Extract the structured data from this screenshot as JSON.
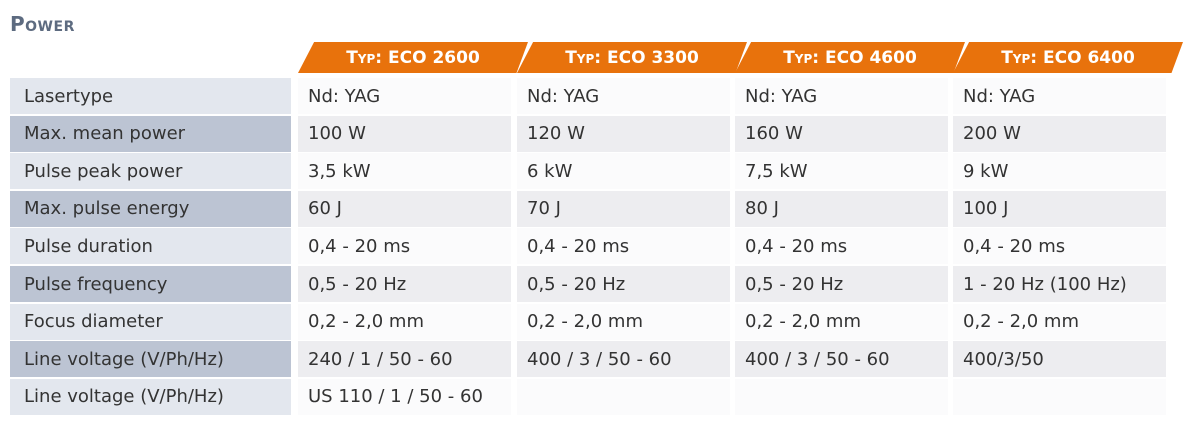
{
  "title": "Power",
  "table": {
    "headers": [
      "Typ: ECO 2600",
      "Typ: ECO 3300",
      "Typ: ECO 4600",
      "Typ: ECO 6400"
    ],
    "rows": [
      {
        "label": "Lasertype",
        "cells": [
          "Nd: YAG",
          "Nd: YAG",
          "Nd: YAG",
          "Nd: YAG"
        ]
      },
      {
        "label": "Max. mean power",
        "cells": [
          "100 W",
          "120 W",
          "160 W",
          "200 W"
        ]
      },
      {
        "label": "Pulse peak power",
        "cells": [
          "3,5 kW",
          "6 kW",
          "7,5 kW",
          "9 kW"
        ]
      },
      {
        "label": "Max. pulse energy",
        "cells": [
          "60 J",
          "70 J",
          "80 J",
          "100 J"
        ]
      },
      {
        "label": "Pulse duration",
        "cells": [
          "0,4 - 20 ms",
          "0,4 - 20 ms",
          "0,4 - 20 ms",
          "0,4 - 20 ms"
        ]
      },
      {
        "label": "Pulse frequency",
        "cells": [
          "0,5 - 20 Hz",
          "0,5 - 20 Hz",
          "0,5 - 20 Hz",
          "1 - 20 Hz (100 Hz)"
        ]
      },
      {
        "label": "Focus diameter",
        "cells": [
          "0,2 - 2,0 mm",
          "0,2 - 2,0 mm",
          "0,2 - 2,0 mm",
          "0,2 - 2,0 mm"
        ]
      },
      {
        "label": "Line voltage (V/Ph/Hz)",
        "cells": [
          "240 / 1 / 50 - 60",
          "400 / 3 / 50 - 60",
          "400 / 3 / 50 - 60",
          "400/3/50"
        ]
      },
      {
        "label": "Line voltage (V/Ph/Hz)",
        "cells": [
          "US 110 / 1 / 50 - 60"
        ]
      }
    ]
  }
}
